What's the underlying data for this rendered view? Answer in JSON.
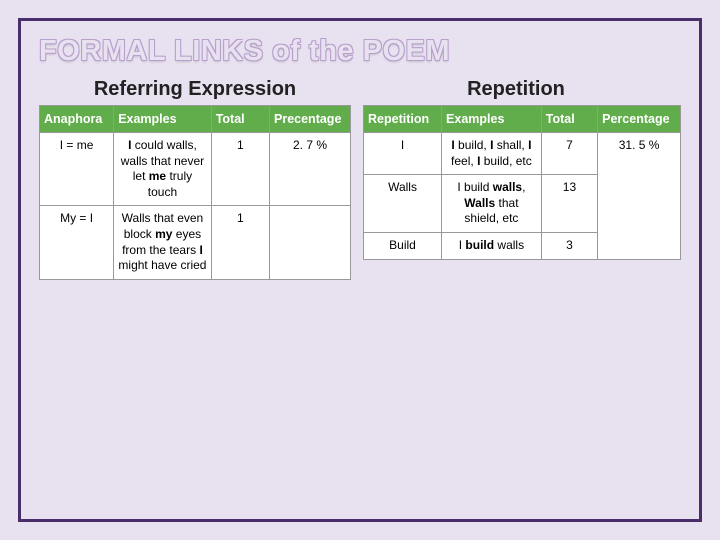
{
  "title": "FORMAL LINKS of the POEM",
  "subtitles": {
    "left": "Referring Expression",
    "right": "Repetition"
  },
  "colors": {
    "background": "#e8e1f0",
    "frame_border": "#4a2d6b",
    "header_bg": "#61ad4b",
    "header_fg": "#ffffff",
    "cell_bg": "#ffffff",
    "cell_border": "#999999"
  },
  "left_table": {
    "headers": [
      "Anaphora",
      "Examples",
      "Total",
      "Precentage"
    ],
    "rows": [
      {
        "anaphora": "I = me",
        "examples_html": "<b>I</b> could walls, walls that never let <b>me</b> truly touch",
        "total": "1",
        "percentage": "2. 7 %"
      },
      {
        "anaphora": "My = I",
        "examples_html": "Walls that even block <b>my</b> eyes from the tears <b>I</b> might have cried",
        "total": "1",
        "percentage": ""
      }
    ]
  },
  "right_table": {
    "headers": [
      "Repetition",
      "Examples",
      "Total",
      "Percentage"
    ],
    "rows": [
      {
        "repetition": "I",
        "examples_html": "<b>I</b> build, <b>I</b> shall, <b>I</b> feel, <b>I</b> build, etc",
        "total": "7",
        "percentage": "31. 5 %"
      },
      {
        "repetition": "Walls",
        "examples_html": "I build <b>walls</b>, <b>Walls</b> that shield, etc",
        "total": "13",
        "percentage": ""
      },
      {
        "repetition": "Build",
        "examples_html": "I <b>build</b> walls",
        "total": "3",
        "percentage": ""
      }
    ]
  }
}
